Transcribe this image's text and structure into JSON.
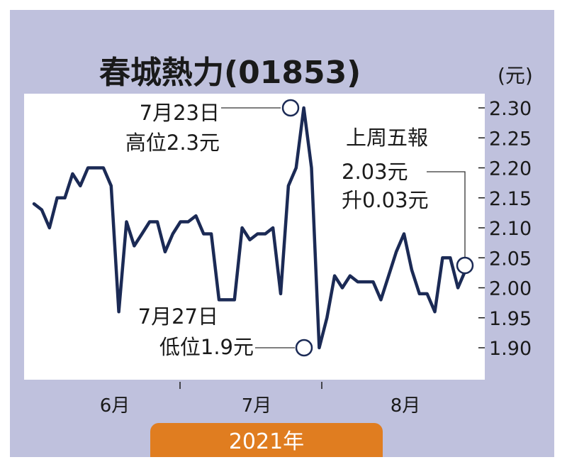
{
  "chart_data": {
    "type": "line",
    "title": "春城熱力(01853)",
    "unit_label": "(元)",
    "year_label": "2021年",
    "month_labels": [
      "6月",
      "7月",
      "8月"
    ],
    "ylim": [
      1.9,
      2.3
    ],
    "yticks": [
      "2.30",
      "2.25",
      "2.20",
      "2.15",
      "2.10",
      "2.05",
      "2.00",
      "1.95",
      "1.90"
    ],
    "grid": false,
    "series": [
      {
        "color": "#1b2a55",
        "values": [
          2.14,
          2.13,
          2.1,
          2.15,
          2.15,
          2.19,
          2.17,
          2.2,
          2.2,
          2.2,
          2.17,
          1.96,
          2.11,
          2.07,
          2.09,
          2.11,
          2.11,
          2.06,
          2.09,
          2.11,
          2.11,
          2.12,
          2.09,
          2.09,
          1.98,
          1.98,
          1.98,
          2.1,
          2.08,
          2.09,
          2.09,
          2.1,
          1.99,
          2.17,
          2.2,
          2.3,
          2.2,
          1.9,
          1.95,
          2.02,
          2.0,
          2.02,
          2.01,
          2.01,
          2.01,
          1.98,
          2.02,
          2.06,
          2.09,
          2.03,
          1.99,
          1.99,
          1.96,
          2.05,
          2.05,
          2.0,
          2.03
        ]
      }
    ],
    "annotations": [
      {
        "lines": [
          "7月23日",
          "高位2.3元"
        ]
      },
      {
        "lines": [
          "7月27日",
          "低位1.9元"
        ]
      },
      {
        "lines": [
          "上周五報",
          "2.03元",
          "升0.03元"
        ]
      }
    ]
  }
}
